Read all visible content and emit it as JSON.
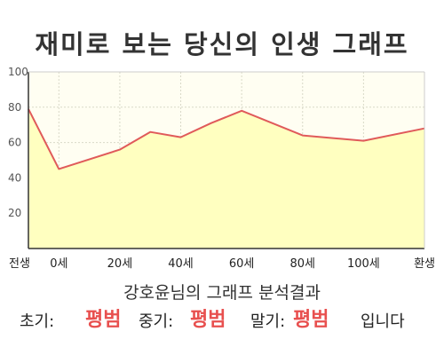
{
  "chart_data": {
    "type": "area",
    "title": "재미로 보는 당신의 인생 그래프",
    "x": [
      -10,
      0,
      20,
      30,
      40,
      50,
      60,
      80,
      100,
      120
    ],
    "y": [
      79,
      45,
      56,
      66,
      63,
      71,
      78,
      64,
      61,
      68
    ],
    "xticks": [
      {
        "label": "전생",
        "value": -10
      },
      {
        "label": "0세",
        "value": 0
      },
      {
        "label": "20세",
        "value": 20
      },
      {
        "label": "40세",
        "value": 40
      },
      {
        "label": "60세",
        "value": 60
      },
      {
        "label": "80세",
        "value": 80
      },
      {
        "label": "100세",
        "value": 100
      },
      {
        "label": "환생",
        "value": 120
      }
    ],
    "xlim": [
      -10,
      120
    ],
    "ylim": [
      0,
      100
    ],
    "yticks": [
      20,
      40,
      60,
      80,
      100
    ],
    "grid": true,
    "line_color": "#e05a5a",
    "fill_color": "#ffffc0",
    "plot_bg": "#fffef2"
  },
  "analysis": {
    "title": "강호윤님의 그래프 분석결과",
    "early_label": "초기:",
    "early_value": "평범",
    "middle_label": "중기:",
    "middle_value": "평범",
    "late_label": "말기:",
    "late_value": "평범",
    "suffix": "입니다"
  }
}
